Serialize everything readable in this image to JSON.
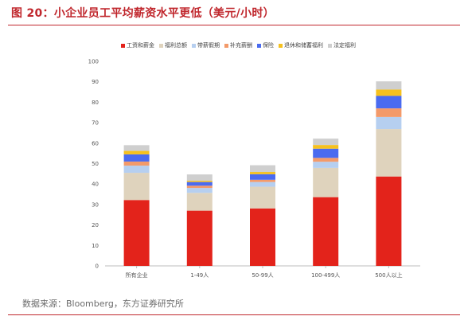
{
  "figure": {
    "title": "图 20：小企业员工平均薪资水平更低（美元/小时）",
    "source": "数据来源：Bloomberg，东方证券研究所"
  },
  "chart_data": {
    "type": "bar",
    "stacked": true,
    "title": "",
    "xlabel": "",
    "ylabel": "",
    "ylim": [
      0,
      100
    ],
    "yticks": [
      0,
      10,
      20,
      30,
      40,
      50,
      60,
      70,
      80,
      90,
      100
    ],
    "grid": false,
    "legend_position": "top",
    "categories": [
      "所有企业",
      "1-49人",
      "50-99人",
      "100-499人",
      "500人以上"
    ],
    "series": [
      {
        "name": "工资和薪金",
        "color": "#e3231b",
        "values": [
          32.2,
          27.0,
          28.1,
          33.6,
          43.7
        ]
      },
      {
        "name": "福利总额",
        "color": "#dfd3bd",
        "values": [
          13.3,
          8.7,
          10.6,
          14.3,
          23.2
        ]
      },
      {
        "name": "带薪假期",
        "color": "#b6cff0",
        "values": [
          3.5,
          2.4,
          2.3,
          3.0,
          5.9
        ]
      },
      {
        "name": "补充薪酬",
        "color": "#f39a6a",
        "values": [
          2.0,
          1.1,
          1.1,
          1.9,
          4.2
        ]
      },
      {
        "name": "保险",
        "color": "#4a6bf0",
        "values": [
          3.5,
          1.8,
          2.7,
          4.5,
          6.1
        ]
      },
      {
        "name": "退休和储蓄福利",
        "color": "#f6c11e",
        "values": [
          1.7,
          0.6,
          1.1,
          1.8,
          3.1
        ]
      },
      {
        "name": "法定福利",
        "color": "#cfcfcf",
        "values": [
          2.8,
          3.1,
          3.3,
          3.1,
          4.0
        ]
      }
    ]
  }
}
